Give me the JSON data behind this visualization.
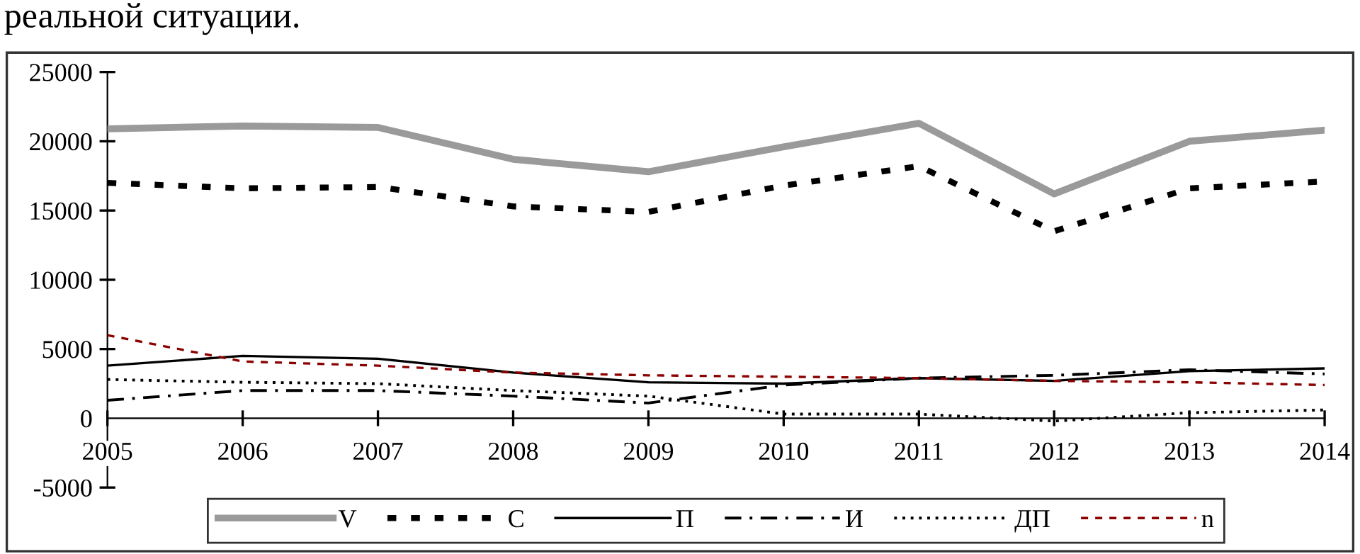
{
  "chart_data": {
    "type": "line",
    "annotations": [
      "реальной ситуации."
    ],
    "x": [
      2005,
      2006,
      2007,
      2008,
      2009,
      2010,
      2011,
      2012,
      2013,
      2014
    ],
    "series": [
      {
        "name": "V",
        "color": "#9a9a9a",
        "line_style": "solid",
        "values": [
          20900,
          21100,
          21000,
          18700,
          17800,
          19600,
          21300,
          16200,
          20000,
          20800
        ]
      },
      {
        "name": "C",
        "color": "#000000",
        "line_style": "dashed",
        "values": [
          17000,
          16600,
          16700,
          15300,
          14900,
          16800,
          18200,
          13500,
          16600,
          17100
        ]
      },
      {
        "name": "П",
        "color": "#000000",
        "line_style": "solid",
        "values": [
          3800,
          4500,
          4300,
          3300,
          2600,
          2500,
          2900,
          2700,
          3400,
          3600
        ]
      },
      {
        "name": "И",
        "color": "#000000",
        "line_style": "dashdot",
        "values": [
          1300,
          2000,
          2000,
          1600,
          1100,
          2400,
          2900,
          3100,
          3500,
          3200
        ]
      },
      {
        "name": "ДП",
        "color": "#000000",
        "line_style": "dotted",
        "values": [
          2800,
          2600,
          2500,
          2000,
          1600,
          300,
          300,
          -200,
          400,
          600
        ]
      },
      {
        "name": "n",
        "color": "#8b0000",
        "line_style": "dashed",
        "values": [
          6000,
          4100,
          3800,
          3300,
          3100,
          3000,
          2900,
          2700,
          2600,
          2400
        ]
      }
    ],
    "xlim": [
      2005,
      2014
    ],
    "xticks": [
      2005,
      2006,
      2007,
      2008,
      2009,
      2010,
      2011,
      2012,
      2013,
      2014
    ],
    "ylim": [
      -5000,
      25000
    ],
    "yticks": [
      -5000,
      0,
      5000,
      10000,
      15000,
      20000,
      25000
    ],
    "grid": false,
    "legend": "bottom",
    "marker": "none"
  }
}
